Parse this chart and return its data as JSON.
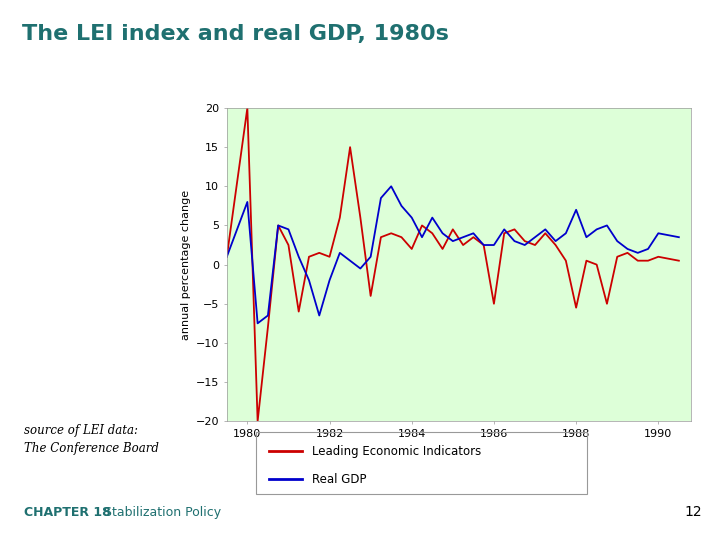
{
  "title": "The LEI index and real GDP, 1980s",
  "title_color": "#1F7070",
  "ylabel": "annual percentage change",
  "xlabel": "",
  "ylim": [
    -20,
    20
  ],
  "xlim": [
    1979.5,
    1990.8
  ],
  "yticks": [
    -20,
    -15,
    -10,
    -5,
    0,
    5,
    10,
    15,
    20
  ],
  "xticks": [
    1980,
    1982,
    1984,
    1986,
    1988,
    1990
  ],
  "bg_color": "#DDFFD8",
  "legend_labels": [
    "Leading Economic Indicators",
    "Real GDP"
  ],
  "legend_colors": [
    "#CC0000",
    "#0000CC"
  ],
  "source_text": "source of LEI data:\nThe Conference Board",
  "chapter_label_bold": "CHAPTER 18",
  "chapter_label_normal": "   Stabilization Policy",
  "page_number": "12",
  "lei_x": [
    1979.5,
    1980.0,
    1980.25,
    1980.5,
    1980.75,
    1981.0,
    1981.25,
    1981.5,
    1981.75,
    1982.0,
    1982.25,
    1982.5,
    1982.75,
    1983.0,
    1983.25,
    1983.5,
    1983.75,
    1984.0,
    1984.25,
    1984.5,
    1984.75,
    1985.0,
    1985.25,
    1985.5,
    1985.75,
    1986.0,
    1986.25,
    1986.5,
    1986.75,
    1987.0,
    1987.25,
    1987.5,
    1987.75,
    1988.0,
    1988.25,
    1988.5,
    1988.75,
    1989.0,
    1989.25,
    1989.5,
    1989.75,
    1990.0,
    1990.5
  ],
  "lei_y": [
    1.0,
    20.0,
    -20.0,
    -8.0,
    5.0,
    2.5,
    -6.0,
    1.0,
    1.5,
    1.0,
    6.0,
    15.0,
    6.0,
    -4.0,
    3.5,
    4.0,
    3.5,
    2.0,
    5.0,
    4.0,
    2.0,
    4.5,
    2.5,
    3.5,
    2.5,
    -5.0,
    4.0,
    4.5,
    3.0,
    2.5,
    4.0,
    2.5,
    0.5,
    -5.5,
    0.5,
    0.0,
    -5.0,
    1.0,
    1.5,
    0.5,
    0.5,
    1.0,
    0.5
  ],
  "gdp_x": [
    1979.5,
    1980.0,
    1980.25,
    1980.5,
    1980.75,
    1981.0,
    1981.25,
    1981.5,
    1981.75,
    1982.0,
    1982.25,
    1982.5,
    1982.75,
    1983.0,
    1983.25,
    1983.5,
    1983.75,
    1984.0,
    1984.25,
    1984.5,
    1984.75,
    1985.0,
    1985.25,
    1985.5,
    1985.75,
    1986.0,
    1986.25,
    1986.5,
    1986.75,
    1987.0,
    1987.25,
    1987.5,
    1987.75,
    1988.0,
    1988.25,
    1988.5,
    1988.75,
    1989.0,
    1989.25,
    1989.5,
    1989.75,
    1990.0,
    1990.5
  ],
  "gdp_y": [
    1.0,
    8.0,
    -7.5,
    -6.5,
    5.0,
    4.5,
    1.0,
    -2.0,
    -6.5,
    -2.0,
    1.5,
    0.5,
    -0.5,
    1.0,
    8.5,
    10.0,
    7.5,
    6.0,
    3.5,
    6.0,
    4.0,
    3.0,
    3.5,
    4.0,
    2.5,
    2.5,
    4.5,
    3.0,
    2.5,
    3.5,
    4.5,
    3.0,
    4.0,
    7.0,
    3.5,
    4.5,
    5.0,
    3.0,
    2.0,
    1.5,
    2.0,
    4.0,
    3.5
  ]
}
